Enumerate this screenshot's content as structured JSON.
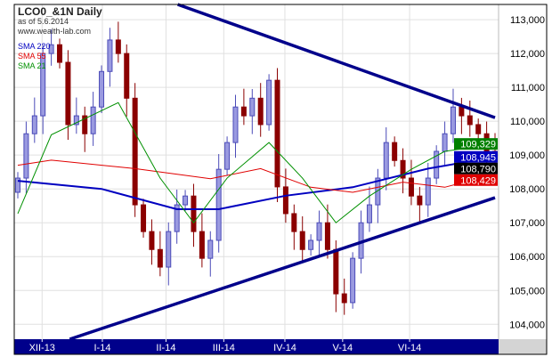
{
  "header": {
    "title": "LCO0_&1N Daily",
    "as_of": "as of 5.6.2014",
    "site": "www.wealth-lab.com"
  },
  "legend": [
    {
      "label": "SMA 220",
      "color": "#0000c0"
    },
    {
      "label": "SMA 55",
      "color": "#e00000"
    },
    {
      "label": "SMA 21",
      "color": "#009000"
    }
  ],
  "chart_data": {
    "type": "candlestick",
    "title": "LCO0_&1N Daily",
    "ylim": [
      103560,
      113450
    ],
    "y_ticks": [
      104000,
      105000,
      106000,
      107000,
      108000,
      109000,
      110000,
      111000,
      112000,
      113000
    ],
    "y_tick_labels": [
      "104,000",
      "105,000",
      "106,000",
      "107,000",
      "108,000",
      "109,000",
      "110,000",
      "111,000",
      "112,000",
      "113,000"
    ],
    "x_ticks": [
      {
        "label": "XII-13",
        "index": 2.9
      },
      {
        "label": "I-14",
        "index": 10.1
      },
      {
        "label": "II-14",
        "index": 17.7
      },
      {
        "label": "III-14",
        "index": 24.6
      },
      {
        "label": "IV-14",
        "index": 31.9
      },
      {
        "label": "V-14",
        "index": 38.8
      },
      {
        "label": "VI-14",
        "index": 46.8
      }
    ],
    "grid": true,
    "closes": [
      108320,
      109630,
      110160,
      112000,
      112260,
      111740,
      109900,
      110160,
      109630,
      110420,
      111470,
      112400,
      112000,
      110680,
      107530,
      106740,
      106210,
      105690,
      106740,
      107530,
      107790,
      106740,
      105950,
      106480,
      108580,
      109370,
      110420,
      110160,
      110680,
      109900,
      111210,
      108060,
      107270,
      106740,
      106210,
      106480,
      107000,
      106210,
      104900,
      104640,
      105950,
      107000,
      107530,
      108320,
      109370,
      108840,
      108320,
      107790,
      107530,
      108320,
      109110,
      109630,
      110420,
      110160,
      109900,
      109630,
      109110,
      108790
    ],
    "first_open": 107900,
    "series": [
      {
        "name": "SMA 220",
        "color": "#0000c0",
        "points": [
          [
            0,
            108240
          ],
          [
            10,
            108000
          ],
          [
            19,
            107400
          ],
          [
            24,
            107400
          ],
          [
            32,
            107800
          ],
          [
            40,
            108050
          ],
          [
            49,
            108600
          ],
          [
            57,
            108945
          ]
        ]
      },
      {
        "name": "SMA 55",
        "color": "#e00000",
        "points": [
          [
            0,
            108700
          ],
          [
            4,
            108850
          ],
          [
            14,
            108600
          ],
          [
            23,
            108300
          ],
          [
            29,
            108600
          ],
          [
            35,
            108050
          ],
          [
            40,
            107900
          ],
          [
            46,
            108200
          ],
          [
            51,
            108050
          ],
          [
            57,
            108429
          ]
        ]
      },
      {
        "name": "SMA 21",
        "color": "#009000",
        "points": [
          [
            0,
            107270
          ],
          [
            4,
            109600
          ],
          [
            12,
            110550
          ],
          [
            17,
            108320
          ],
          [
            21,
            107000
          ],
          [
            25,
            108320
          ],
          [
            30,
            109370
          ],
          [
            34,
            108320
          ],
          [
            38,
            107000
          ],
          [
            42,
            107790
          ],
          [
            47,
            108580
          ],
          [
            51,
            109110
          ],
          [
            57,
            109329
          ]
        ]
      }
    ],
    "trendlines": [
      {
        "name": "upper",
        "color": "#00008b",
        "points": [
          [
            19.1,
            113450
          ],
          [
            57,
            110107
          ]
        ]
      },
      {
        "name": "lower",
        "color": "#00008b",
        "points": [
          [
            6.2,
            103560
          ],
          [
            57,
            107740
          ]
        ]
      }
    ],
    "price_badges": [
      {
        "value": "109,329",
        "price": 109329,
        "bg": "#008000"
      },
      {
        "value": "108,945",
        "price": 108945,
        "bg": "#0000c0"
      },
      {
        "value": "108,790",
        "price": 108790,
        "bg": "#000000"
      },
      {
        "value": "108,429",
        "price": 108429,
        "bg": "#e00000"
      }
    ],
    "colors": {
      "up": "#4b4bb8",
      "up_fill": "#9a9ae0",
      "down": "#8b0000",
      "axis_bar": "#00008b",
      "grid": "#e0e0e0"
    }
  }
}
